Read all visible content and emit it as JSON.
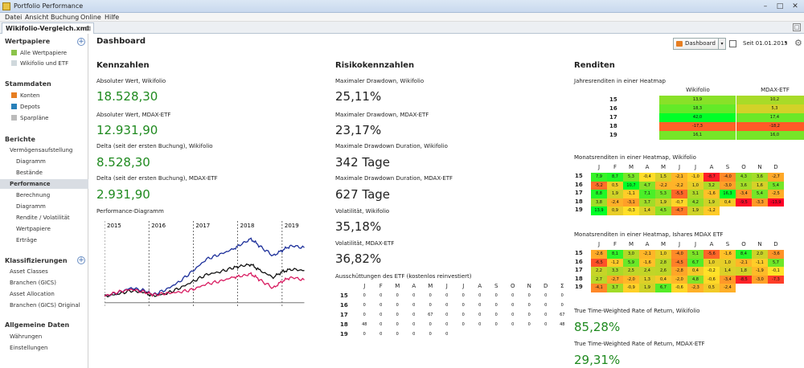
{
  "window": {
    "title": "Portfolio Performance",
    "min": "–",
    "max": "□",
    "close": "✕"
  },
  "menu": [
    "Datei",
    "Ansicht",
    "Buchung",
    "Online",
    "Hilfe"
  ],
  "tab": {
    "label": "Wikifolio-Vergleich.xml",
    "close": "⊠",
    "maximize": "□"
  },
  "sidebar": {
    "wertpapiere": {
      "title": "Wertpapiere",
      "items": [
        "Alle Wertpapiere",
        "Wikifolio und ETF"
      ]
    },
    "stammdaten": {
      "title": "Stammdaten",
      "items": [
        "Konten",
        "Depots",
        "Sparpläne"
      ]
    },
    "berichte": {
      "title": "Berichte",
      "items": [
        "Vermögensaufstellung",
        "Diagramm",
        "Bestände",
        "Performance",
        "Berechnung",
        "Diagramm",
        "Rendite / Volatilität",
        "Wertpapiere",
        "Erträge"
      ]
    },
    "klassifizierungen": {
      "title": "Klassifizierungen",
      "items": [
        "Asset Classes",
        "Branchen (GICS)",
        "Asset Allocation",
        "Branchen (GICS) Original"
      ]
    },
    "allgemein": {
      "title": "Allgemeine Daten",
      "items": [
        "Währungen",
        "Einstellungen"
      ]
    },
    "icon_colors": {
      "alle": "#8bc34a",
      "konten": "#e67e22",
      "depots": "#2980b9",
      "spar": "#bbbbbb"
    }
  },
  "dashboard": {
    "title": "Dashboard",
    "combo": "Dashboard",
    "drop": "▾",
    "period": "Seit 01.01.2015",
    "gear": "⚙"
  },
  "kennzahlen": {
    "title": "Kennzahlen",
    "items": [
      {
        "label": "Absoluter Wert, Wikifolio",
        "value": "18.528,30"
      },
      {
        "label": "Absoluter Wert, MDAX-ETF",
        "value": "12.931,90"
      },
      {
        "label": "Delta (seit der ersten Buchung), Wikifolio",
        "value": "8.528,30"
      },
      {
        "label": "Delta (seit der ersten Buchung), MDAX-ETF",
        "value": "2.931,90"
      }
    ],
    "chart_label": "Performance-Diagramm",
    "years": [
      "2015",
      "2016",
      "2017",
      "2018",
      "2019"
    ]
  },
  "chart_data": {
    "type": "line",
    "x_range": [
      "2015-01-01",
      "2019-06-30"
    ],
    "x_ticks": [
      "2015",
      "2016",
      "2017",
      "2018",
      "2019"
    ],
    "series": [
      {
        "color": "#1c2f9a",
        "x": [
          2015.0,
          2015.3,
          2015.6,
          2015.9,
          2016.1,
          2016.4,
          2016.7,
          2017.0,
          2017.3,
          2017.6,
          2017.9,
          2018.1,
          2018.3,
          2018.5,
          2018.8,
          2019.0,
          2019.2,
          2019.5
        ],
        "y": [
          1,
          1.05,
          1.12,
          1.08,
          1.02,
          1.1,
          1.22,
          1.38,
          1.55,
          1.62,
          1.7,
          1.78,
          1.85,
          1.74,
          1.6,
          1.68,
          1.75,
          1.72
        ]
      },
      {
        "color": "#111111",
        "x": [
          2015.0,
          2015.3,
          2015.6,
          2015.9,
          2016.1,
          2016.4,
          2016.7,
          2017.0,
          2017.3,
          2017.6,
          2017.9,
          2018.1,
          2018.3,
          2018.5,
          2018.8,
          2019.0,
          2019.2,
          2019.5
        ],
        "y": [
          1,
          1.03,
          1.08,
          1.05,
          1.0,
          1.04,
          1.12,
          1.22,
          1.32,
          1.36,
          1.42,
          1.45,
          1.47,
          1.38,
          1.28,
          1.36,
          1.4,
          1.38
        ]
      },
      {
        "color": "#d81b60",
        "x": [
          2015.0,
          2015.3,
          2015.6,
          2015.9,
          2016.1,
          2016.4,
          2016.7,
          2017.0,
          2017.3,
          2017.6,
          2017.9,
          2018.1,
          2018.3,
          2018.5,
          2018.8,
          2019.0,
          2019.2,
          2019.5
        ],
        "y": [
          1,
          1.06,
          1.1,
          1.06,
          1.02,
          1.04,
          1.06,
          1.1,
          1.18,
          1.22,
          1.28,
          1.3,
          1.33,
          1.24,
          1.12,
          1.22,
          1.28,
          1.24
        ]
      },
      {
        "color": "#777777",
        "x": [
          2015.0,
          2019.5
        ],
        "y": [
          0.9,
          0.9
        ]
      }
    ],
    "ylim": [
      0.85,
      1.95
    ]
  },
  "risiko": {
    "title": "Risikokennzahlen",
    "items": [
      {
        "label": "Maximaler Drawdown, Wikifolio",
        "value": "25,11%"
      },
      {
        "label": "Maximaler Drawdown, MDAX-ETF",
        "value": "23,17%"
      },
      {
        "label": "Maximale Drawdown Duration, Wikifolio",
        "value": "342 Tage"
      },
      {
        "label": "Maximale Drawdown Duration, MDAX-ETF",
        "value": "627 Tage"
      },
      {
        "label": "Volatilität, Wikifolio",
        "value": "35,18%"
      },
      {
        "label": "Volatilität, MDAX-ETF",
        "value": "36,82%"
      }
    ],
    "aus_label": "Ausschüttungen des ETF (kostenlos reinvestiert)",
    "months": [
      "J",
      "F",
      "M",
      "A",
      "M",
      "J",
      "J",
      "A",
      "S",
      "O",
      "N",
      "D",
      "Σ"
    ],
    "years": [
      "15",
      "16",
      "17",
      "18",
      "19"
    ],
    "aus": [
      [
        "0",
        "0",
        "0",
        "0",
        "0",
        "0",
        "0",
        "0",
        "0",
        "0",
        "0",
        "0",
        "0"
      ],
      [
        "0",
        "0",
        "0",
        "0",
        "0",
        "0",
        "0",
        "0",
        "0",
        "0",
        "0",
        "0",
        "0"
      ],
      [
        "0",
        "0",
        "0",
        "0",
        "67",
        "0",
        "0",
        "0",
        "0",
        "0",
        "0",
        "0",
        "67"
      ],
      [
        "48",
        "0",
        "0",
        "0",
        "0",
        "0",
        "0",
        "0",
        "0",
        "0",
        "0",
        "0",
        "48"
      ],
      [
        "0",
        "0",
        "0",
        "0",
        "0",
        "0",
        "",
        "",
        "",
        "",
        "",
        "",
        ""
      ]
    ]
  },
  "renditen": {
    "title": "Renditen",
    "yearly_label": "Jahresrenditen in einer Heatmap",
    "yearly_cols": [
      "Wikifolio",
      "MDAX-ETF"
    ],
    "yearly_rows": [
      "15",
      "16",
      "17",
      "18",
      "19"
    ],
    "yearly": [
      [
        "13,9",
        "10,2"
      ],
      [
        "18,3",
        "5,3"
      ],
      [
        "42,0",
        "17,4"
      ],
      [
        "-17,3",
        "-18,2"
      ],
      [
        "16,1",
        "16,0"
      ]
    ],
    "wiki_label": "Monatsrenditen in einer Heatmap, Wikifolio",
    "etf_label": "Monatsrenditen in einer Heatmap, Ishares MDAX ETF",
    "months": [
      "J",
      "F",
      "M",
      "A",
      "M",
      "J",
      "J",
      "A",
      "S",
      "O",
      "N",
      "D"
    ],
    "years": [
      "15",
      "16",
      "17",
      "18",
      "19"
    ],
    "wiki": [
      [
        "7,9",
        "8,7",
        "5,3",
        "-0,4",
        "1,5",
        "-2,1",
        "-1,0",
        "-8,7",
        "-4,0",
        "4,3",
        "3,6",
        "-2,7"
      ],
      [
        "-5,2",
        "0,5",
        "10,7",
        "4,7",
        "-2,2",
        "-2,2",
        "1,0",
        "3,2",
        "-3,0",
        "3,6",
        "1,6",
        "5,4"
      ],
      [
        "8,8",
        "1,9",
        "-1,1",
        "7,1",
        "5,3",
        "-5,5",
        "3,1",
        "-1,6",
        "16,3",
        "-3,4",
        "5,4",
        "-2,5"
      ],
      [
        "3,8",
        "-2,4",
        "-3,1",
        "3,7",
        "1,9",
        "-0,7",
        "4,2",
        "1,9",
        "0,4",
        "-9,5",
        "-3,3",
        "-13,9"
      ],
      [
        "13,9",
        "0,9",
        "-0,3",
        "1,4",
        "4,5",
        "-4,7",
        "1,9",
        "-1,2",
        "",
        "",
        "",
        ""
      ]
    ],
    "etf": [
      [
        "-2,6",
        "8,1",
        "3,0",
        "-2,1",
        "1,0",
        "-4,0",
        "5,1",
        "-5,6",
        "-1,6",
        "8,4",
        "2,0",
        "-3,6"
      ],
      [
        "-6,5",
        "-1,2",
        "5,9",
        "-1,6",
        "2,8",
        "-4,5",
        "6,7",
        "1,0",
        "1,0",
        "-2,1",
        "-1,1",
        "5,7"
      ],
      [
        "2,2",
        "3,3",
        "2,5",
        "2,4",
        "2,6",
        "-2,8",
        "0,4",
        "-0,2",
        "1,4",
        "1,8",
        "-1,9",
        "-0,1"
      ],
      [
        "2,7",
        "-2,7",
        "-2,0",
        "1,3",
        "0,4",
        "-2,0",
        "4,8",
        "-0,6",
        "-3,4",
        "-8,5",
        "-3,0",
        "-7,3"
      ],
      [
        "-4,1",
        "3,7",
        "-0,9",
        "1,9",
        "6,7",
        "-0,6",
        "-2,3",
        "0,5",
        "-2,4",
        "",
        "",
        ""
      ]
    ],
    "twr_w_label": "True Time-Weighted Rate of Return, Wikifolio",
    "twr_w": "85,28%",
    "twr_e_label": "True Time-Weighted Rate of Return, MDAX-ETF",
    "twr_e": "29,31%"
  }
}
